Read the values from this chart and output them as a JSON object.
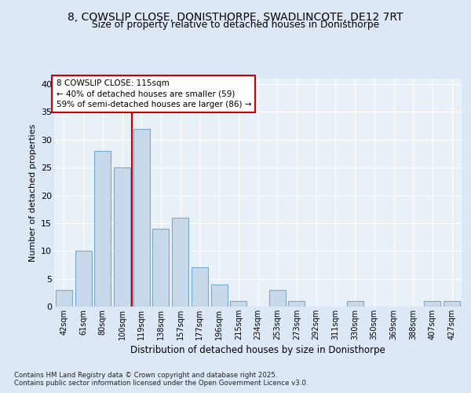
{
  "title1": "8, COWSLIP CLOSE, DONISTHORPE, SWADLINCOTE, DE12 7RT",
  "title2": "Size of property relative to detached houses in Donisthorpe",
  "xlabel": "Distribution of detached houses by size in Donisthorpe",
  "ylabel": "Number of detached properties",
  "categories": [
    "42sqm",
    "61sqm",
    "80sqm",
    "100sqm",
    "119sqm",
    "138sqm",
    "157sqm",
    "177sqm",
    "196sqm",
    "215sqm",
    "234sqm",
    "253sqm",
    "273sqm",
    "292sqm",
    "311sqm",
    "330sqm",
    "350sqm",
    "369sqm",
    "388sqm",
    "407sqm",
    "427sqm"
  ],
  "values": [
    3,
    10,
    28,
    25,
    32,
    14,
    16,
    7,
    4,
    1,
    0,
    3,
    1,
    0,
    0,
    1,
    0,
    0,
    0,
    1,
    1
  ],
  "bar_color": "#c8d9ec",
  "bar_edge_color": "#7aaacb",
  "vline_index": 4.0,
  "vline_color": "#cc0000",
  "marker_label": "8 COWSLIP CLOSE: 115sqm",
  "annotation_line1": "← 40% of detached houses are smaller (59)",
  "annotation_line2": "59% of semi-detached houses are larger (86) →",
  "bg_color": "#dce8f5",
  "plot_bg_color": "#e8f0f8",
  "grid_color": "#ffffff",
  "footnote1": "Contains HM Land Registry data © Crown copyright and database right 2025.",
  "footnote2": "Contains public sector information licensed under the Open Government Licence v3.0.",
  "ylim": [
    0,
    41
  ],
  "yticks": [
    0,
    5,
    10,
    15,
    20,
    25,
    30,
    35,
    40
  ]
}
